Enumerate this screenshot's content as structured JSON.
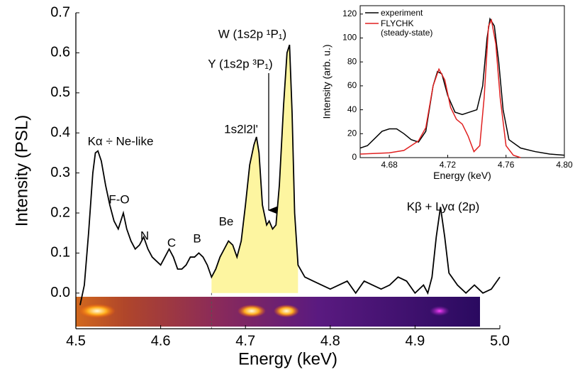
{
  "chart_data": [
    {
      "type": "line",
      "xlabel": "Energy (keV)",
      "ylabel": "Intensity (PSL)",
      "x": [
        4.505,
        4.51,
        4.515,
        4.52,
        4.523,
        4.526,
        4.53,
        4.535,
        4.54,
        4.545,
        4.55,
        4.553,
        4.556,
        4.56,
        4.565,
        4.57,
        4.575,
        4.58,
        4.585,
        4.59,
        4.595,
        4.6,
        4.605,
        4.61,
        4.615,
        4.62,
        4.625,
        4.63,
        4.635,
        4.64,
        4.645,
        4.65,
        4.655,
        4.66,
        4.665,
        4.67,
        4.675,
        4.68,
        4.685,
        4.69,
        4.695,
        4.7,
        4.705,
        4.71,
        4.713,
        4.716,
        4.72,
        4.725,
        4.728,
        4.732,
        4.736,
        4.74,
        4.745,
        4.749,
        4.752,
        4.755,
        4.758,
        4.762,
        4.77,
        4.78,
        4.79,
        4.8,
        4.81,
        4.82,
        4.83,
        4.84,
        4.85,
        4.86,
        4.87,
        4.88,
        4.89,
        4.9,
        4.91,
        4.915,
        4.92,
        4.925,
        4.93,
        4.935,
        4.94,
        4.95,
        4.96,
        4.97,
        4.98,
        4.99,
        5.0
      ],
      "values": [
        -0.03,
        0.02,
        0.15,
        0.3,
        0.35,
        0.355,
        0.33,
        0.27,
        0.22,
        0.18,
        0.16,
        0.18,
        0.2,
        0.16,
        0.13,
        0.11,
        0.12,
        0.14,
        0.11,
        0.09,
        0.08,
        0.07,
        0.09,
        0.11,
        0.09,
        0.06,
        0.06,
        0.07,
        0.09,
        0.09,
        0.1,
        0.09,
        0.07,
        0.04,
        0.06,
        0.09,
        0.11,
        0.13,
        0.12,
        0.09,
        0.13,
        0.22,
        0.32,
        0.37,
        0.39,
        0.35,
        0.22,
        0.17,
        0.18,
        0.16,
        0.17,
        0.27,
        0.47,
        0.6,
        0.62,
        0.45,
        0.2,
        0.07,
        0.04,
        0.03,
        0.02,
        0.01,
        0.02,
        0.03,
        0.0,
        0.03,
        0.02,
        0.01,
        0.02,
        0.04,
        0.03,
        0.0,
        0.02,
        0.0,
        0.04,
        0.14,
        0.215,
        0.14,
        0.05,
        0.02,
        0.0,
        0.02,
        0.0,
        0.01,
        0.04
      ],
      "color": "#000000",
      "fill_xrange": [
        4.66,
        4.765
      ],
      "fill_color": "#fdf5a0",
      "xlim": [
        4.5,
        5.0
      ],
      "ylim": [
        -0.089,
        0.7
      ],
      "xticks": [
        4.5,
        4.6,
        4.7,
        4.8,
        4.9,
        {
          "value": 5,
          "label": "5.0"
        }
      ],
      "yticks": [
        {
          "value": 0,
          "label": "0.0"
        },
        0.1,
        0.2,
        0.3,
        0.4,
        0.5,
        0.6,
        0.7
      ],
      "annotations": [
        "Kα ÷ Ne-like",
        "F-O",
        "N",
        "C",
        "B",
        "Be",
        "1s2l2l'",
        "Y (1s2p ³P₁)",
        "W (1s2p ¹P₁)",
        "Kβ + Lyα (2p)"
      ]
    },
    {
      "type": "line",
      "xlabel": "Energy (keV)",
      "ylabel": "Intensity (arb. u.)",
      "series": [
        {
          "name": "experiment",
          "color": "#000000",
          "x": [
            4.66,
            4.665,
            4.67,
            4.675,
            4.68,
            4.685,
            4.69,
            4.695,
            4.7,
            4.705,
            4.71,
            4.713,
            4.716,
            4.72,
            4.725,
            4.73,
            4.735,
            4.74,
            4.744,
            4.747,
            4.749,
            4.752,
            4.755,
            4.758,
            4.762,
            4.77,
            4.78,
            4.79,
            4.8
          ],
          "values": [
            8,
            10,
            16,
            22,
            24,
            24,
            20,
            15,
            13,
            22,
            60,
            72,
            70,
            52,
            38,
            36,
            38,
            40,
            60,
            100,
            116,
            110,
            80,
            40,
            15,
            8,
            5,
            3,
            2
          ]
        },
        {
          "name": "FLYCHK (steady-state)",
          "color": "#e02020",
          "x": [
            4.66,
            4.68,
            4.69,
            4.7,
            4.705,
            4.71,
            4.714,
            4.718,
            4.722,
            4.726,
            4.73,
            4.734,
            4.738,
            4.742,
            4.745,
            4.748,
            4.75,
            4.753,
            4.756,
            4.76,
            4.765,
            4.77
          ],
          "values": [
            3,
            4,
            6,
            14,
            25,
            60,
            74,
            65,
            42,
            32,
            28,
            18,
            5,
            10,
            50,
            110,
            115,
            95,
            50,
            10,
            2,
            0
          ]
        }
      ],
      "xlim": [
        4.66,
        4.8
      ],
      "ylim": [
        0,
        127
      ],
      "xticks": [
        4.68,
        4.72,
        4.76,
        {
          "value": 4.8,
          "label": "4.80"
        }
      ],
      "yticks": [
        0,
        20,
        40,
        60,
        80,
        100,
        120
      ]
    }
  ]
}
